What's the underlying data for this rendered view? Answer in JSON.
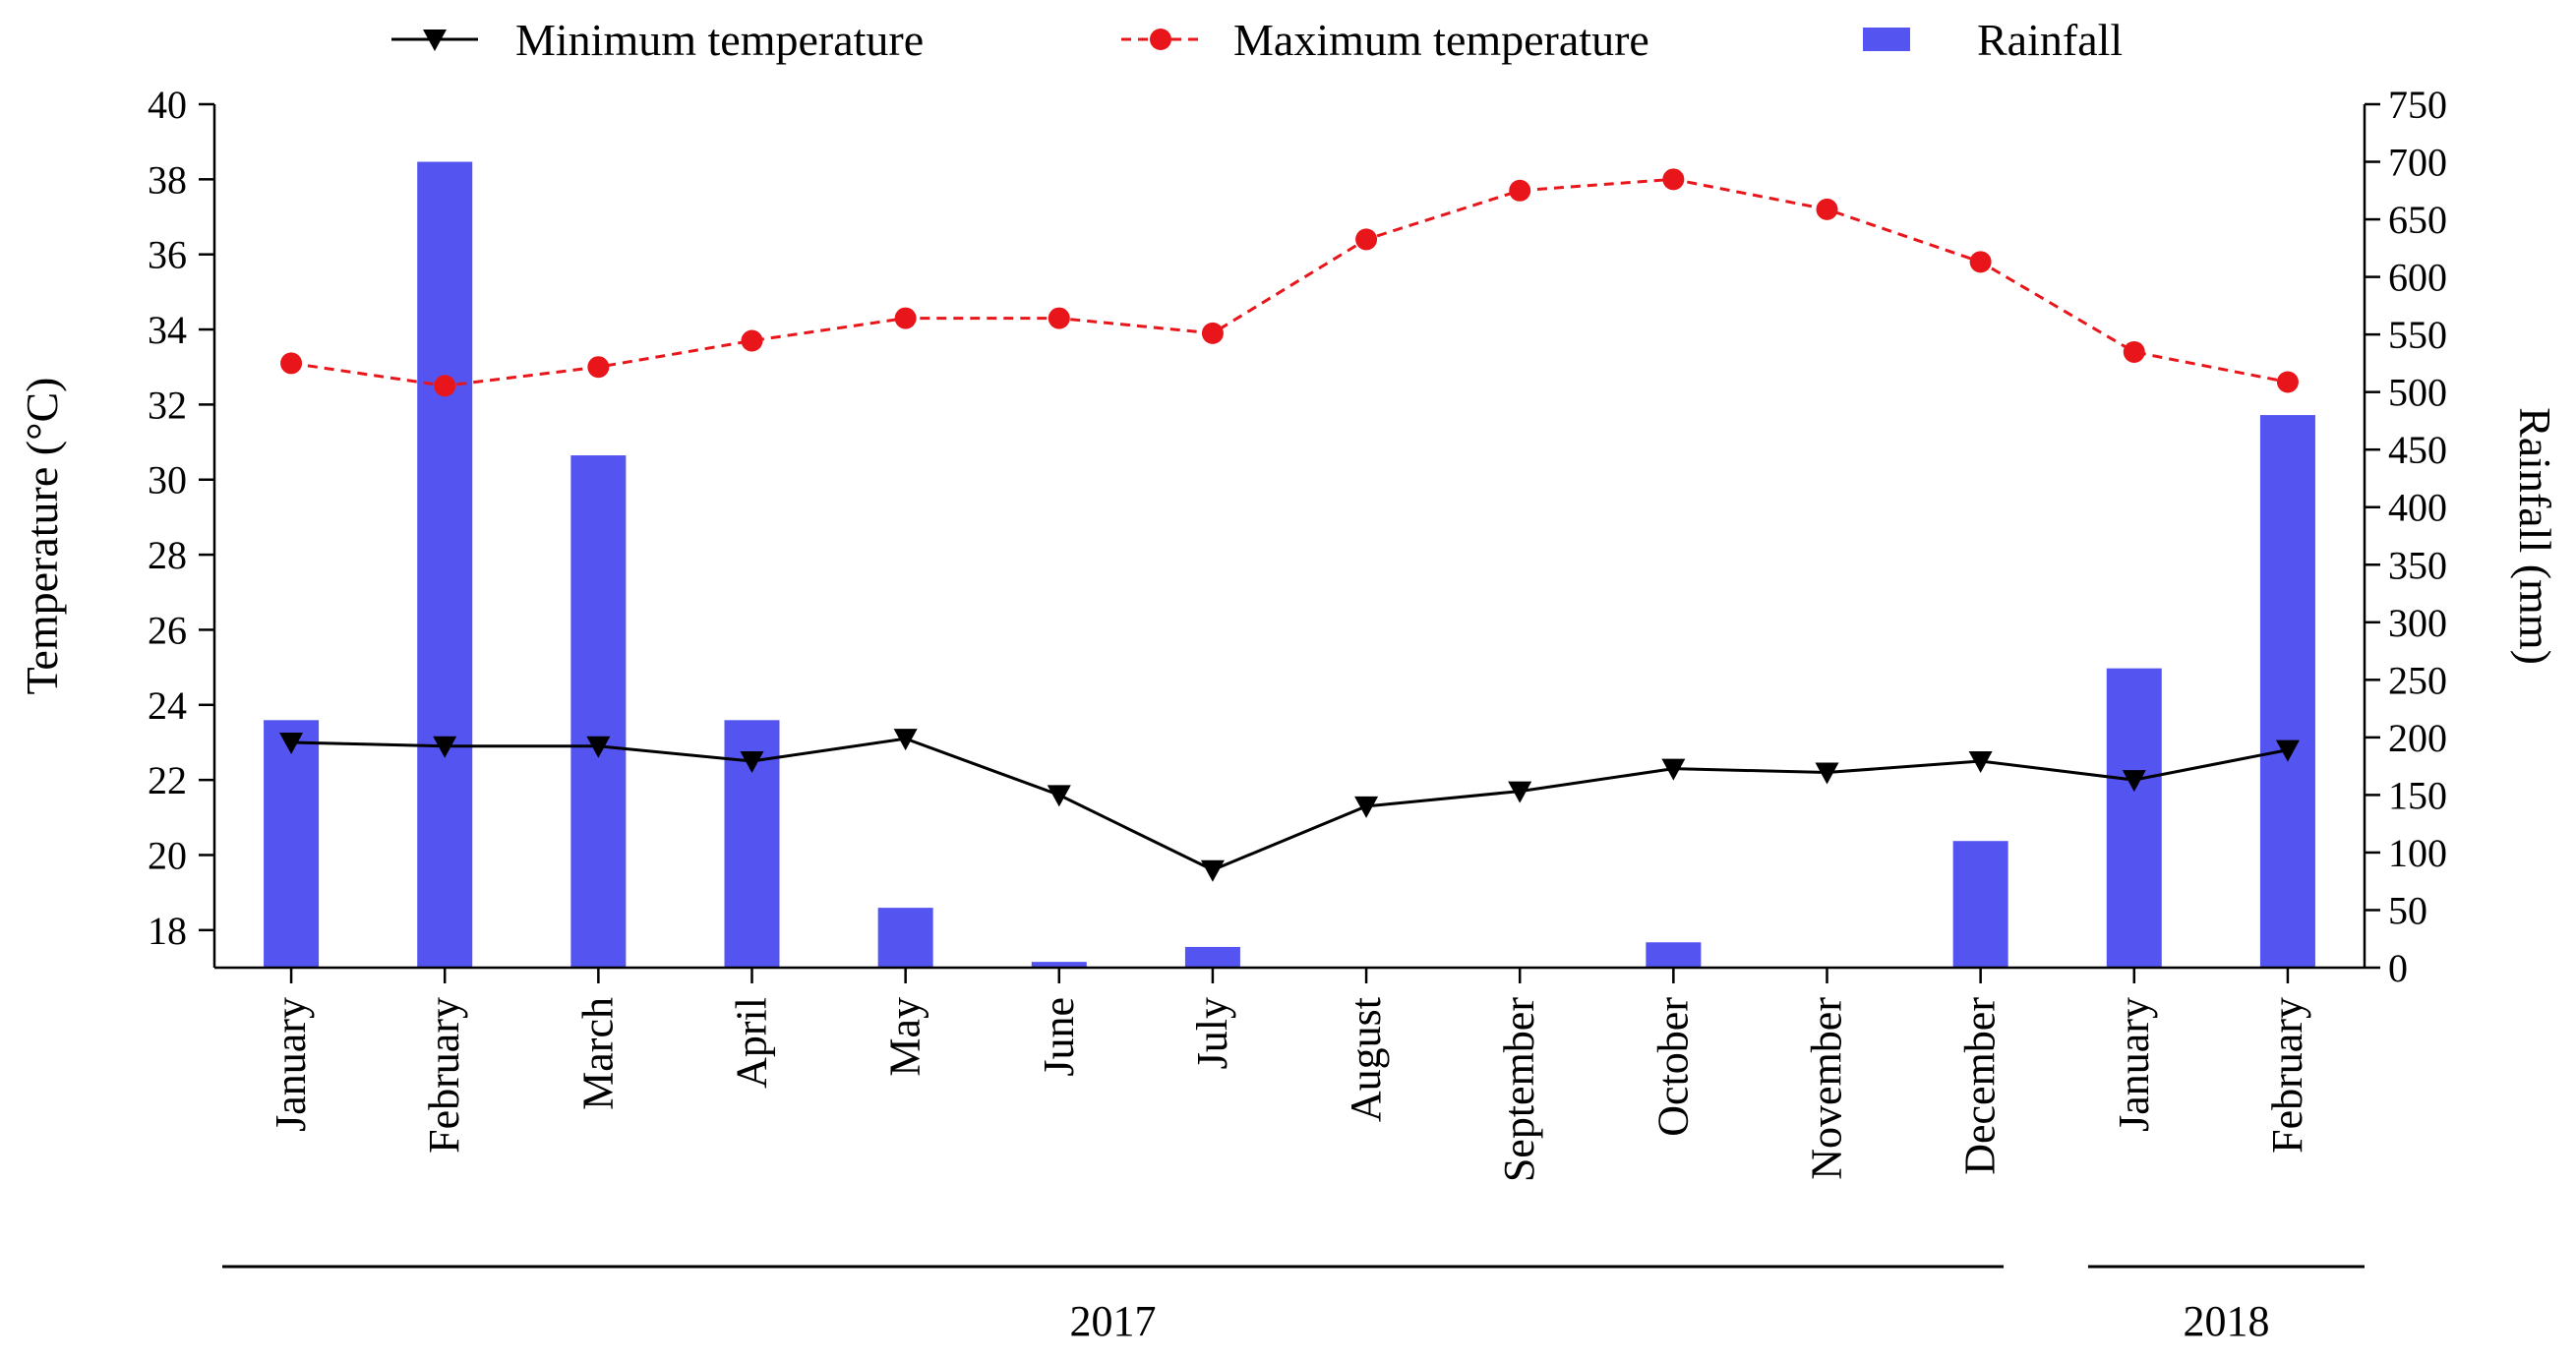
{
  "chart_data": {
    "type": "bar+line",
    "categories": [
      "January",
      "February",
      "March",
      "April",
      "May",
      "June",
      "July",
      "August",
      "September",
      "October",
      "November",
      "December",
      "January",
      "February"
    ],
    "year_groups": [
      {
        "label": "2017",
        "start_index": 0,
        "end_index": 11
      },
      {
        "label": "2018",
        "start_index": 12,
        "end_index": 13
      }
    ],
    "series": [
      {
        "name": "Minimum temperature",
        "type": "line",
        "axis": "left",
        "color": "#000000",
        "marker": "triangle-down",
        "dash": "solid",
        "values": [
          23.0,
          22.9,
          22.9,
          22.5,
          23.1,
          21.6,
          19.6,
          21.3,
          21.7,
          22.3,
          22.2,
          22.5,
          22.0,
          22.8
        ]
      },
      {
        "name": "Maximum temperature",
        "type": "line",
        "axis": "left",
        "color": "#e8161b",
        "marker": "circle",
        "dash": "dashed",
        "values": [
          33.1,
          32.5,
          33.0,
          33.7,
          34.3,
          34.3,
          33.9,
          36.4,
          37.7,
          38.0,
          37.2,
          35.8,
          33.4,
          32.6
        ]
      },
      {
        "name": "Rainfall",
        "type": "bar",
        "axis": "right",
        "color": "#5454f0",
        "values": [
          215,
          700,
          445,
          215,
          52,
          5,
          18,
          0,
          0,
          22,
          0,
          110,
          260,
          480
        ]
      }
    ],
    "y_left": {
      "label": "Temperature (°C)",
      "min": 17,
      "max": 40,
      "ticks": [
        18,
        20,
        22,
        24,
        26,
        28,
        30,
        32,
        34,
        36,
        38,
        40
      ]
    },
    "y_right": {
      "label": "Rainfall (mm)",
      "min": 0,
      "max": 750,
      "ticks": [
        0,
        50,
        100,
        150,
        200,
        250,
        300,
        350,
        400,
        450,
        500,
        550,
        600,
        650,
        700,
        750
      ]
    },
    "legend_position": "top"
  }
}
